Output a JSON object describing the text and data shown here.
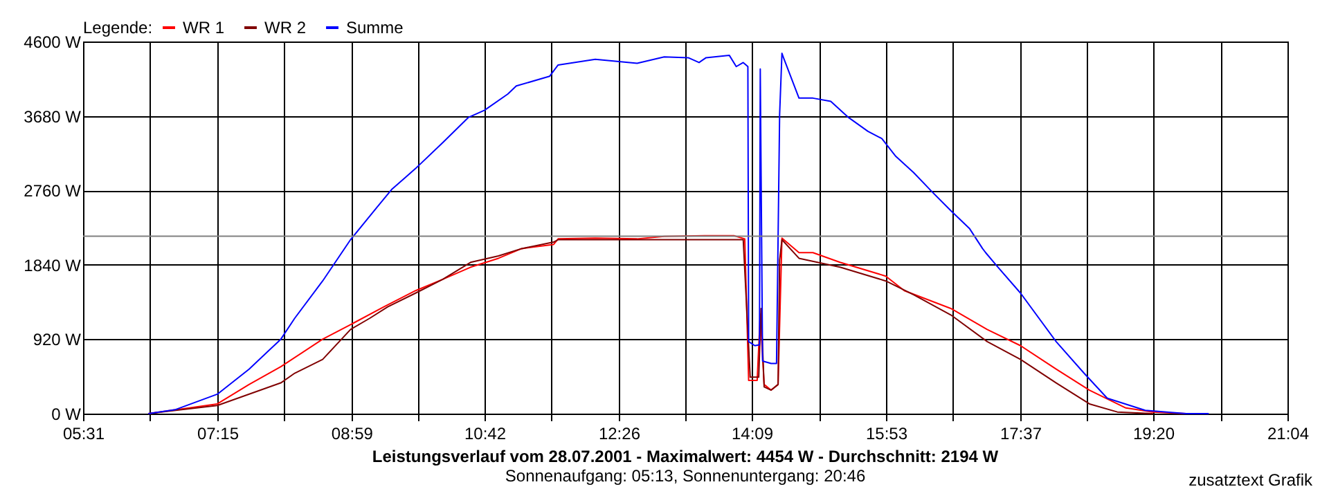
{
  "chart_data": {
    "type": "line",
    "title": "Leistungsverlauf vom 28.07.2001 - Maximalwert: 4454 W - Durchschnitt: 2194 W",
    "subtitle": "Sonnenaufgang: 05:13, Sonnenuntergang: 20:46",
    "legend_title": "Legende:",
    "annotations": [
      "zusatztext Grafik"
    ],
    "legend": "top left",
    "grid": true,
    "xlim": [
      5.5167,
      21.0667
    ],
    "xticks": [
      {
        "value": 5.5167,
        "label": "05:31"
      },
      {
        "value": 6.3833,
        "label": null
      },
      {
        "value": 7.25,
        "label": "07:15"
      },
      {
        "value": 8.1167,
        "label": null
      },
      {
        "value": 8.9833,
        "label": "08:59"
      },
      {
        "value": 9.8417,
        "label": null
      },
      {
        "value": 10.7,
        "label": "10:42"
      },
      {
        "value": 11.5667,
        "label": null
      },
      {
        "value": 12.4333,
        "label": "12:26"
      },
      {
        "value": 13.2917,
        "label": null
      },
      {
        "value": 14.15,
        "label": "14:09"
      },
      {
        "value": 15.0167,
        "label": null
      },
      {
        "value": 15.8833,
        "label": "15:53"
      },
      {
        "value": 16.75,
        "label": null
      },
      {
        "value": 17.6167,
        "label": "17:37"
      },
      {
        "value": 18.475,
        "label": null
      },
      {
        "value": 19.3333,
        "label": "19:20"
      },
      {
        "value": 20.2,
        "label": null
      },
      {
        "value": 21.0667,
        "label": "21:04"
      }
    ],
    "ylim": [
      0,
      4600
    ],
    "yticks": [
      {
        "value": 0,
        "label": "0 W"
      },
      {
        "value": 920,
        "label": "920 W"
      },
      {
        "value": 1840,
        "label": "1840 W"
      },
      {
        "value": 2760,
        "label": "2760 W"
      },
      {
        "value": 3680,
        "label": "3680 W"
      },
      {
        "value": 4600,
        "label": "4600 W"
      }
    ],
    "ref_lines": [
      {
        "axis": "y",
        "value": 2194,
        "color": "#808080"
      }
    ],
    "series": [
      {
        "name": "WR 1",
        "color": "#ff0000",
        "x": [
          6.36,
          7.25,
          7.66,
          8.07,
          8.61,
          8.97,
          9.4,
          9.81,
          10.16,
          10.52,
          10.88,
          11.18,
          11.59,
          11.65,
          12.13,
          12.67,
          13.02,
          13.61,
          13.92,
          14.06,
          14.11,
          14.22,
          14.26,
          14.31,
          14.4,
          14.49,
          14.54,
          14.76,
          14.94,
          15.29,
          15.88,
          16.12,
          16.72,
          17.19,
          17.62,
          18.08,
          18.51,
          18.98,
          19.33,
          19.76
        ],
        "values": [
          0,
          120,
          360,
          580,
          920,
          1100,
          1320,
          1520,
          1660,
          1810,
          1920,
          2040,
          2090,
          2160,
          2170,
          2160,
          2190,
          2200,
          2200,
          2160,
          410,
          410,
          1230,
          360,
          290,
          360,
          2170,
          1990,
          1990,
          1870,
          1700,
          1520,
          1300,
          1040,
          840,
          550,
          290,
          70,
          20,
          0
        ]
      },
      {
        "name": "WR 2",
        "color": "#800000",
        "x": [
          6.36,
          7.25,
          8.07,
          8.25,
          8.61,
          8.97,
          9.22,
          9.45,
          9.81,
          10.16,
          10.52,
          10.88,
          11.18,
          11.59,
          11.65,
          12.67,
          13.02,
          14.04,
          14.13,
          14.24,
          14.27,
          14.31,
          14.4,
          14.49,
          14.51,
          14.54,
          14.76,
          15.29,
          15.88,
          16.24,
          16.72,
          17.19,
          17.62,
          18.08,
          18.51,
          18.87,
          19.33
        ],
        "values": [
          0,
          100,
          380,
          500,
          670,
          1040,
          1180,
          1320,
          1490,
          1660,
          1870,
          1950,
          2040,
          2120,
          2150,
          2150,
          2150,
          2150,
          450,
          450,
          1300,
          330,
          290,
          360,
          1900,
          2150,
          1920,
          1810,
          1640,
          1470,
          1220,
          890,
          670,
          380,
          120,
          20,
          0
        ]
      },
      {
        "name": "Summe",
        "color": "#0000ff",
        "x": [
          6.36,
          6.71,
          7.25,
          7.66,
          8.07,
          8.25,
          8.61,
          8.97,
          9.31,
          9.5,
          9.81,
          10.16,
          10.49,
          10.7,
          11.0,
          11.11,
          11.54,
          11.65,
          12.13,
          12.67,
          13.02,
          13.33,
          13.47,
          13.56,
          13.86,
          13.95,
          14.04,
          14.1,
          14.11,
          14.19,
          14.25,
          14.26,
          14.29,
          14.4,
          14.47,
          14.51,
          14.54,
          14.56,
          14.76,
          14.94,
          15.17,
          15.4,
          15.65,
          15.83,
          16.01,
          16.24,
          16.47,
          16.72,
          16.96,
          17.13,
          17.17,
          17.31,
          17.62,
          18.08,
          18.44,
          18.74,
          19.23,
          19.76,
          20.05
        ],
        "values": [
          0,
          50,
          240,
          550,
          920,
          1180,
          1640,
          2150,
          2550,
          2770,
          3030,
          3350,
          3660,
          3750,
          3950,
          4050,
          4170,
          4310,
          4380,
          4330,
          4410,
          4400,
          4340,
          4400,
          4430,
          4290,
          4340,
          4290,
          890,
          840,
          850,
          4260,
          650,
          620,
          620,
          3700,
          4454,
          4400,
          3900,
          3900,
          3860,
          3660,
          3490,
          3400,
          3180,
          2980,
          2750,
          2510,
          2290,
          2040,
          1990,
          1830,
          1490,
          890,
          500,
          190,
          40,
          0,
          0
        ]
      }
    ]
  }
}
